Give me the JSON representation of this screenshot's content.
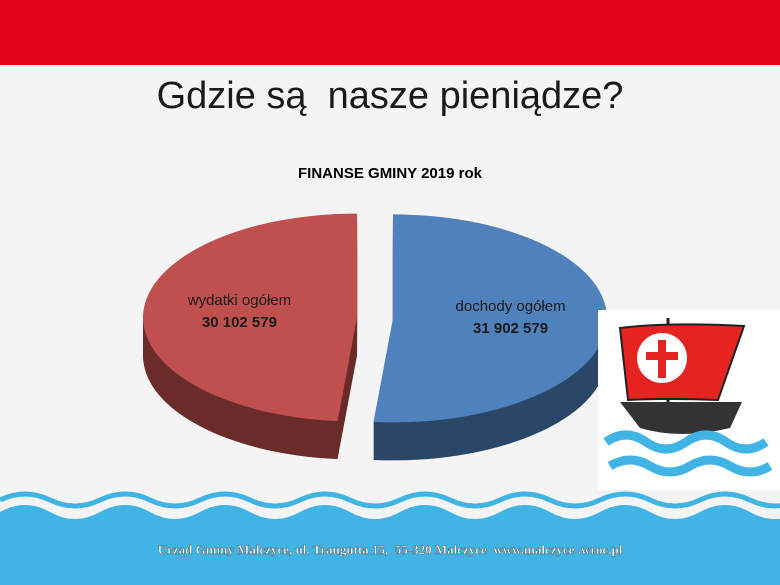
{
  "header": {
    "title": "Gdzie są  nasze pieniądze?"
  },
  "chart_data": {
    "type": "pie",
    "title": "FINANSE GMINY 2019 rok",
    "categories": [
      "dochody ogółem",
      "wydatki ogółem"
    ],
    "values": [
      31902579,
      30102579
    ],
    "value_labels": [
      "31 902 579",
      "30 102 579"
    ],
    "colors": [
      "#4f81bd",
      "#c0504d"
    ]
  },
  "footer": {
    "text": "Urząd Gminy Malczyce, ul. Traugutta 15,  55-320 Malczyce  www.malczyce .wroc.pl"
  }
}
